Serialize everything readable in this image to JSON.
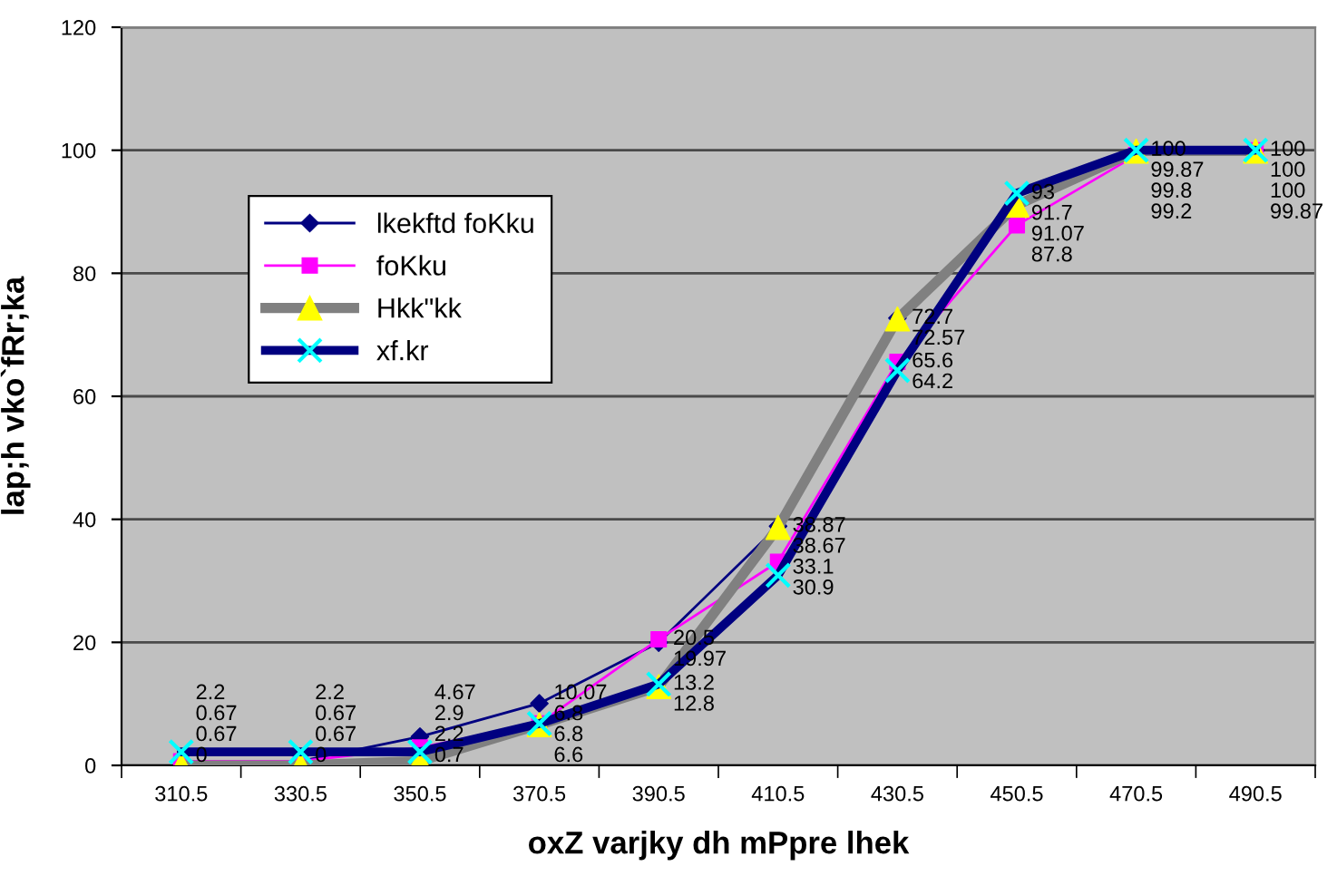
{
  "chart_data": {
    "type": "line",
    "categories": [
      "310.5",
      "330.5",
      "350.5",
      "370.5",
      "390.5",
      "410.5",
      "430.5",
      "450.5",
      "470.5",
      "490.5"
    ],
    "xlabel": "oxZ varjky dh mPpre lhek",
    "ylabel": "lap;h vko`fRr;ka",
    "ylim": [
      0,
      120
    ],
    "yticks": [
      0,
      20,
      40,
      60,
      80,
      100,
      120
    ],
    "grid": "y",
    "legend": "top left",
    "data_labels": true,
    "line_style": "solid",
    "series": [
      {
        "name": "lkekftd foKku",
        "color": "#000080",
        "marker": "diamond",
        "colors": [
          "#000080",
          "#000080",
          "#000080",
          "#000080",
          "#000080",
          "#000080",
          "#000080",
          "#000080",
          "#000080",
          "#000080"
        ],
        "values": [
          0.67,
          0.67,
          4.67,
          10.07,
          19.97,
          38.87,
          72.7,
          91.7,
          99.8,
          100
        ]
      },
      {
        "name": "foKku",
        "color": "#ff00ff",
        "marker": "square",
        "colors": [
          "#ff00ff",
          "#ff00ff",
          "#ff00ff",
          "#ff00ff",
          "#ff00ff",
          "#ff00ff",
          "#ff00ff",
          "#ff00ff",
          "#ff00ff",
          "#ff00ff"
        ],
        "values": [
          0.67,
          0.67,
          2.9,
          6.8,
          20.5,
          33.1,
          65.6,
          87.8,
          99.2,
          100
        ]
      },
      {
        "name": "Hkk\"kk",
        "color": "#808080",
        "marker": "triangle",
        "colors": [
          "#ffff00",
          "#ffff00",
          "#ffff00",
          "#ffff00",
          "#ffff00",
          "#ffff00",
          "#ffff00",
          "#ffff00",
          "#ffff00",
          "#ffff00"
        ],
        "values": [
          0,
          0,
          0.7,
          6.6,
          12.8,
          38.67,
          72.57,
          91.07,
          99.87,
          99.87
        ]
      },
      {
        "name": "xf.kr",
        "color": "#000080",
        "marker": "cross",
        "colors": [
          "#00ffff",
          "#00ffff",
          "#00ffff",
          "#00ffff",
          "#00ffff",
          "#00ffff",
          "#00ffff",
          "#00ffff",
          "#00ffff",
          "#00ffff"
        ],
        "values": [
          2.2,
          2.2,
          2.2,
          6.8,
          13.2,
          30.9,
          64.2,
          93,
          100,
          100
        ]
      }
    ]
  }
}
